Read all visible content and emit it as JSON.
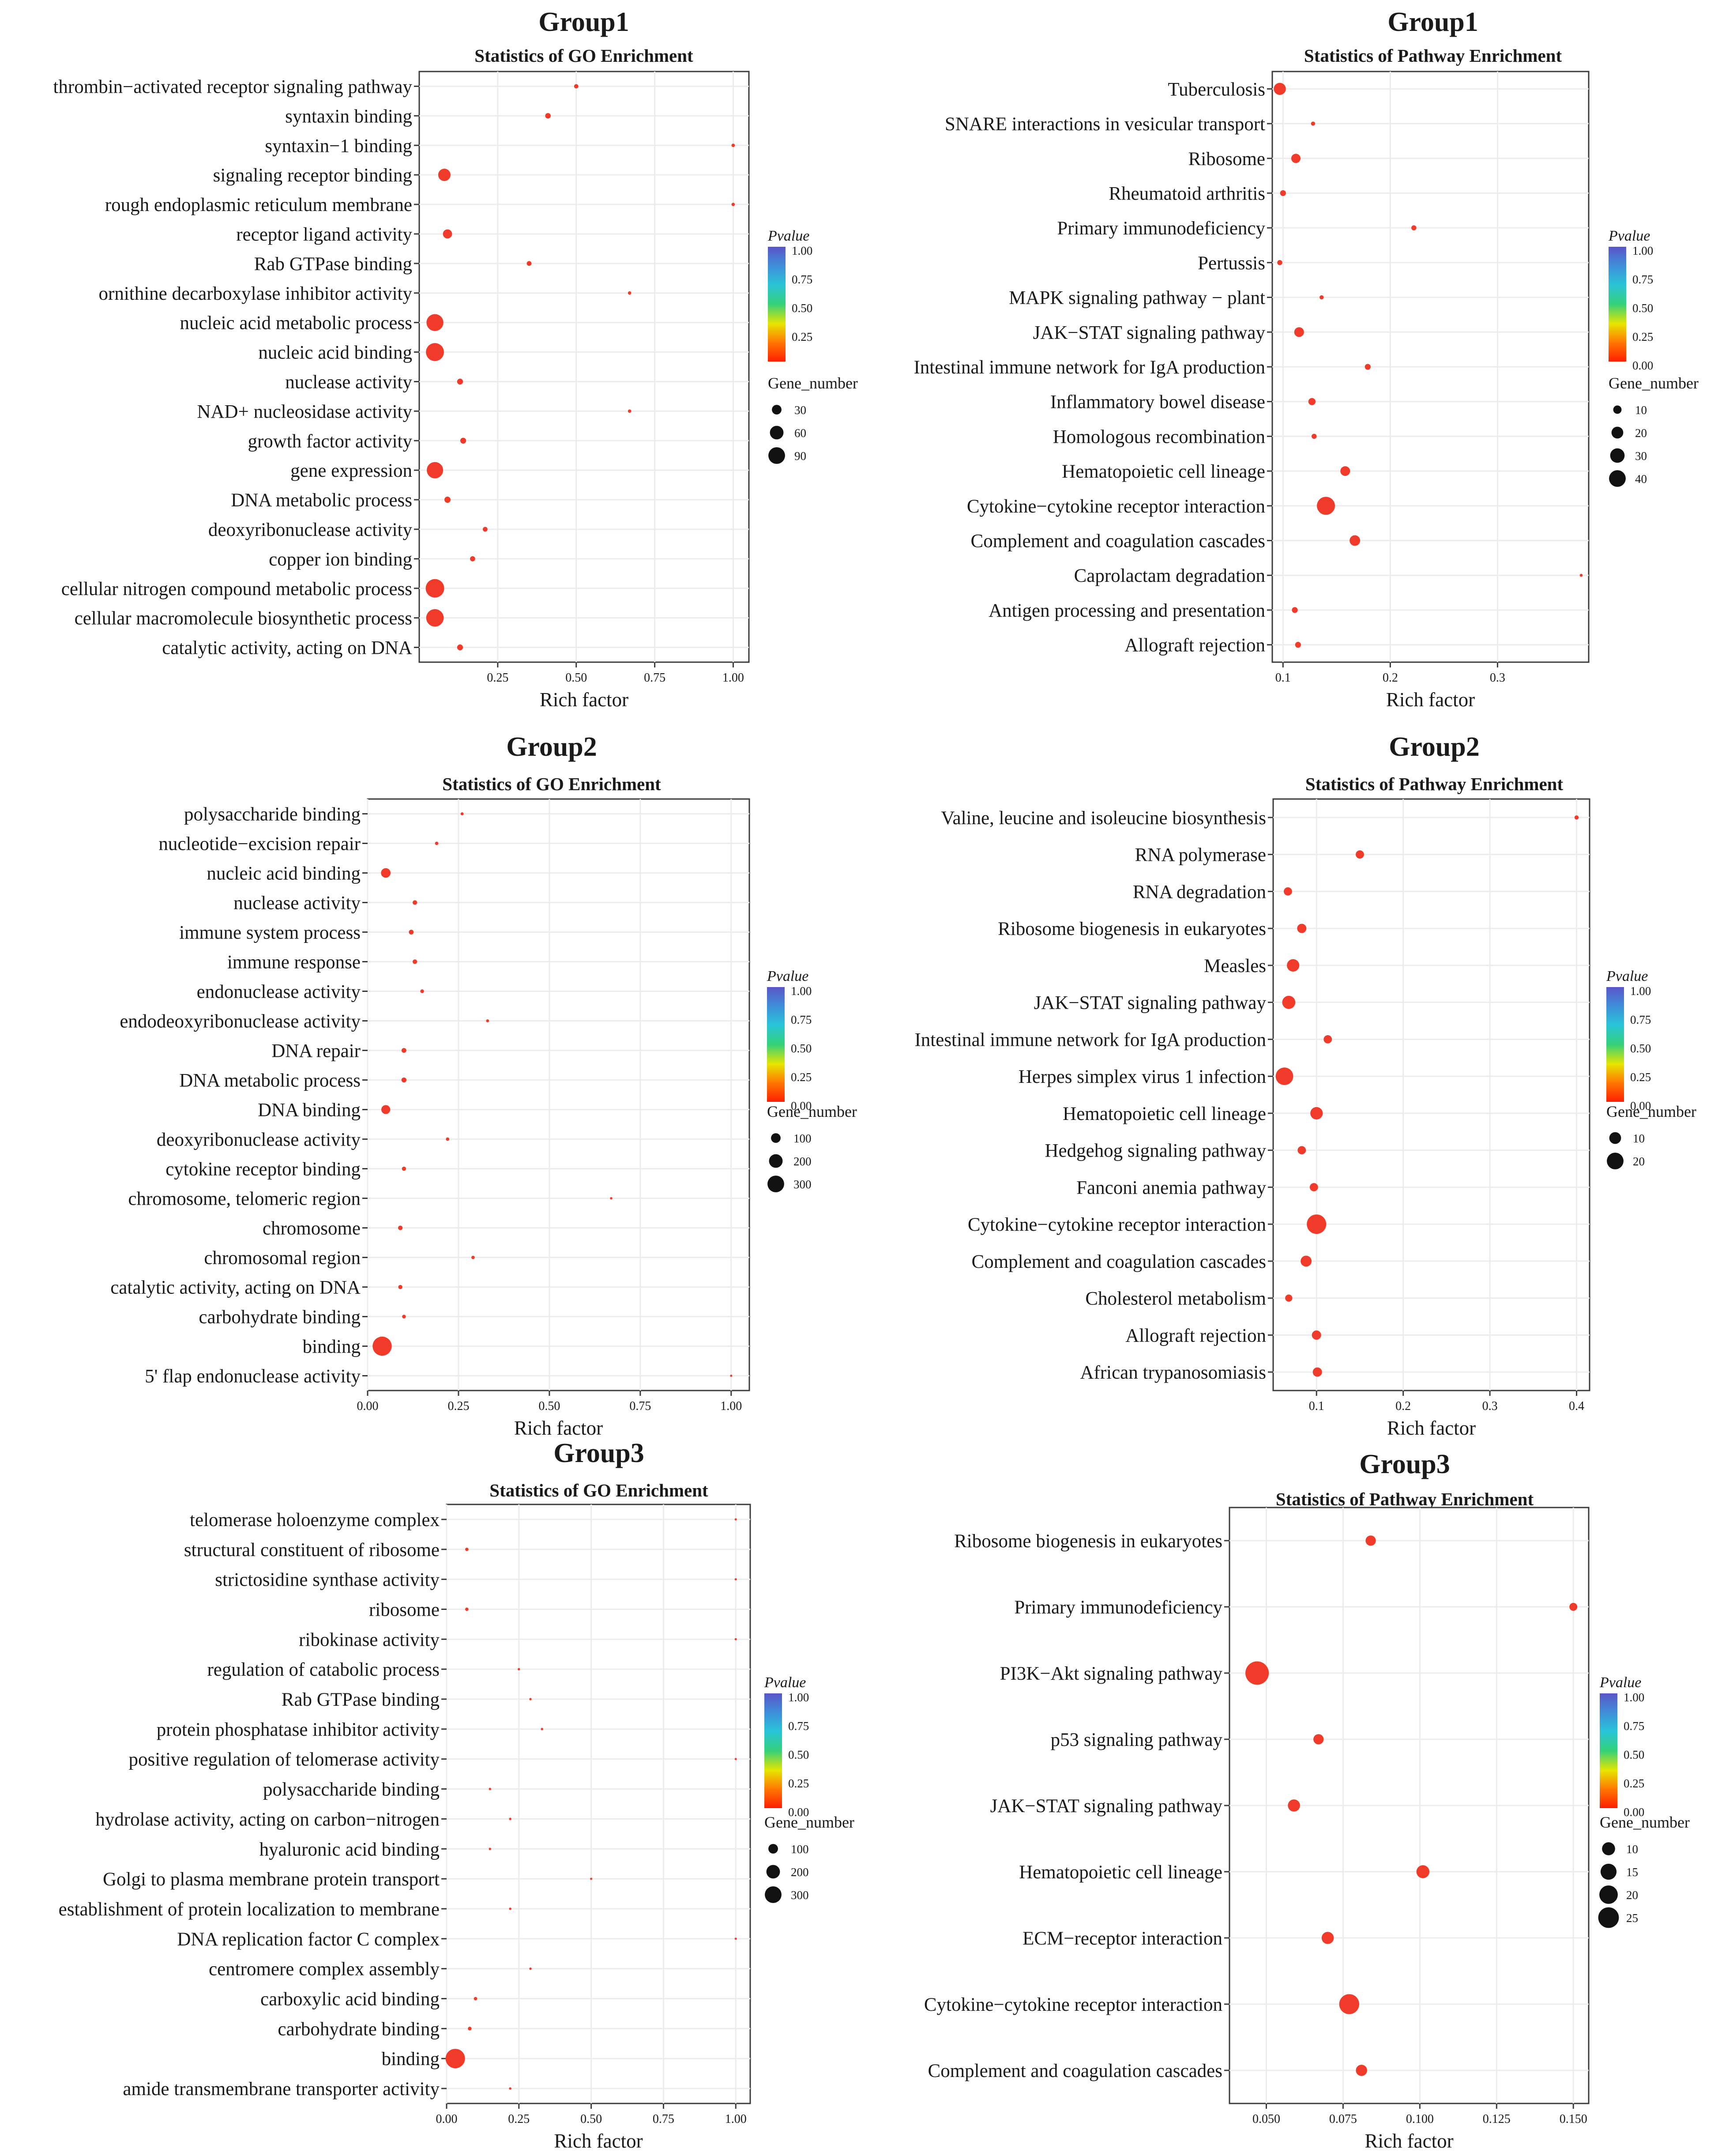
{
  "chart_data": [
    {
      "type": "scatter",
      "group": "Group1",
      "title": "Statistics of GO Enrichment",
      "xlabel": "Rich factor",
      "xlim": [
        0.0,
        1.05
      ],
      "xticks": [
        0.25,
        0.5,
        0.75,
        1.0
      ],
      "xtick_labels": [
        "0.25",
        "0.50",
        "0.75",
        "1.00"
      ],
      "categories": [
        "thrombin−activated receptor signaling pathway",
        "syntaxin binding",
        "syntaxin−1 binding",
        "signaling receptor binding",
        "rough endoplasmic reticulum membrane",
        "receptor ligand activity",
        "Rab GTPase binding",
        "ornithine decarboxylase inhibitor activity",
        "nucleic acid metabolic process",
        "nucleic acid binding",
        "nuclease activity",
        "NAD+ nucleosidase activity",
        "growth factor activity",
        "gene expression",
        "DNA metabolic process",
        "deoxyribonuclease activity",
        "copper ion binding",
        "cellular nitrogen compound metabolic process",
        "cellular macromolecule biosynthetic process",
        "catalytic activity, acting on DNA"
      ],
      "x": [
        0.5,
        0.41,
        1.0,
        0.08,
        1.0,
        0.09,
        0.35,
        0.67,
        0.05,
        0.05,
        0.13,
        0.67,
        0.14,
        0.05,
        0.09,
        0.21,
        0.17,
        0.05,
        0.05,
        0.13
      ],
      "gene_number": [
        5,
        8,
        3,
        40,
        3,
        22,
        6,
        3,
        75,
        85,
        9,
        3,
        9,
        70,
        10,
        6,
        7,
        90,
        80,
        9
      ],
      "pvalue": [
        0.03,
        0.03,
        0.03,
        0.01,
        0.03,
        0.01,
        0.03,
        0.03,
        0.0,
        0.0,
        0.02,
        0.03,
        0.02,
        0.0,
        0.02,
        0.03,
        0.03,
        0.0,
        0.0,
        0.02
      ],
      "size_legend": {
        "title": "Gene_number",
        "values": [
          30,
          60,
          90
        ],
        "labels": [
          "30",
          "60",
          "90"
        ]
      },
      "color_legend": {
        "title": "Pvalue",
        "labels": [
          "1.00",
          "0.75",
          "0.50",
          "0.25"
        ]
      }
    },
    {
      "type": "scatter",
      "group": "Group1",
      "title": "Statistics of Pathway Enrichment",
      "xlabel": "Rich factor",
      "xlim": [
        0.09,
        0.385
      ],
      "xticks": [
        0.1,
        0.2,
        0.3
      ],
      "xtick_labels": [
        "0.1",
        "0.2",
        "0.3"
      ],
      "categories": [
        "Tuberculosis",
        "SNARE interactions in vesicular transport",
        "Ribosome",
        "Rheumatoid arthritis",
        "Primary immunodeficiency",
        "Pertussis",
        "MAPK signaling pathway − plant",
        "JAK−STAT signaling pathway",
        "Intestinal immune network for IgA production",
        "Inflammatory bowel disease",
        "Homologous recombination",
        "Hematopoietic cell lineage",
        "Cytokine−cytokine receptor interaction",
        "Complement and coagulation cascades",
        "Caprolactam degradation",
        "Antigen processing and presentation",
        "Allograft rejection"
      ],
      "x": [
        0.097,
        0.128,
        0.112,
        0.1,
        0.222,
        0.097,
        0.136,
        0.115,
        0.179,
        0.127,
        0.129,
        0.158,
        0.14,
        0.167,
        0.378,
        0.111,
        0.114
      ],
      "gene_number": [
        17,
        2,
        10,
        4,
        3,
        3,
        2,
        11,
        4,
        6,
        3,
        11,
        38,
        13,
        1,
        4,
        4
      ],
      "pvalue": [
        0.02,
        0.05,
        0.03,
        0.05,
        0.05,
        0.06,
        0.05,
        0.02,
        0.03,
        0.04,
        0.05,
        0.02,
        0.0,
        0.01,
        0.06,
        0.05,
        0.05
      ],
      "size_legend": {
        "title": "Gene_number",
        "values": [
          10,
          20,
          30,
          40
        ],
        "labels": [
          "10",
          "20",
          "30",
          "40"
        ]
      },
      "color_legend": {
        "title": "Pvalue",
        "labels": [
          "1.00",
          "0.75",
          "0.50",
          "0.25",
          "0.00"
        ]
      }
    },
    {
      "type": "scatter",
      "group": "Group2",
      "title": "Statistics of GO Enrichment",
      "xlabel": "Rich factor",
      "xlim": [
        0.0,
        1.05
      ],
      "xticks": [
        0.0,
        0.25,
        0.5,
        0.75,
        1.0
      ],
      "xtick_labels": [
        "0.00",
        "0.25",
        "0.50",
        "0.75",
        "1.00"
      ],
      "categories": [
        "polysaccharide binding",
        "nucleotide−excision repair",
        "nucleic acid binding",
        "nuclease activity",
        "immune system process",
        "immune response",
        "endonuclease activity",
        "endodeoxyribonuclease activity",
        "DNA repair",
        "DNA metabolic process",
        "DNA binding",
        "deoxyribonuclease activity",
        "cytokine receptor binding",
        "chromosome, telomeric region",
        "chromosome",
        "chromosomal region",
        "catalytic activity, acting on DNA",
        "carbohydrate binding",
        "binding",
        "5' flap endonuclease activity"
      ],
      "x": [
        0.26,
        0.19,
        0.05,
        0.13,
        0.12,
        0.13,
        0.15,
        0.33,
        0.1,
        0.1,
        0.05,
        0.22,
        0.1,
        0.67,
        0.09,
        0.29,
        0.09,
        0.1,
        0.04,
        1.0
      ],
      "gene_number": [
        8,
        10,
        80,
        18,
        20,
        18,
        12,
        8,
        20,
        22,
        70,
        10,
        15,
        5,
        18,
        10,
        15,
        12,
        320,
        3
      ],
      "pvalue": [
        0.03,
        0.03,
        0.0,
        0.02,
        0.02,
        0.02,
        0.03,
        0.03,
        0.02,
        0.02,
        0.0,
        0.03,
        0.03,
        0.03,
        0.03,
        0.03,
        0.03,
        0.03,
        0.0,
        0.04
      ],
      "size_legend": {
        "title": "Gene_number",
        "values": [
          100,
          200,
          300
        ],
        "labels": [
          "100",
          "200",
          "300"
        ]
      },
      "color_legend": {
        "title": "Pvalue",
        "labels": [
          "1.00",
          "0.75",
          "0.50",
          "0.25",
          "0.00"
        ]
      }
    },
    {
      "type": "scatter",
      "group": "Group2",
      "title": "Statistics of Pathway Enrichment",
      "xlabel": "Rich factor",
      "xlim": [
        0.05,
        0.415
      ],
      "xticks": [
        0.1,
        0.2,
        0.3,
        0.4
      ],
      "xtick_labels": [
        "0.1",
        "0.2",
        "0.3",
        "0.4"
      ],
      "categories": [
        "Valine, leucine and isoleucine biosynthesis",
        "RNA polymerase",
        "RNA degradation",
        "Ribosome biogenesis in eukaryotes",
        "Measles",
        "JAK−STAT signaling pathway",
        "Intestinal immune network for IgA production",
        "Herpes simplex virus 1 infection",
        "Hematopoietic cell lineage",
        "Hedgehog signaling pathway",
        "Fanconi anemia pathway",
        "Cytokine−cytokine receptor interaction",
        "Complement and coagulation cascades",
        "Cholesterol metabolism",
        "Allograft rejection",
        "African trypanosomiasis"
      ],
      "x": [
        0.4,
        0.15,
        0.067,
        0.083,
        0.073,
        0.068,
        0.113,
        0.063,
        0.1,
        0.083,
        0.097,
        0.1,
        0.088,
        0.068,
        0.1,
        0.101
      ],
      "gene_number": [
        1,
        4,
        4,
        5,
        9,
        10,
        4,
        18,
        9,
        4,
        4,
        22,
        7,
        3,
        5,
        5
      ],
      "pvalue": [
        0.05,
        0.04,
        0.03,
        0.03,
        0.02,
        0.02,
        0.04,
        0.0,
        0.02,
        0.03,
        0.03,
        0.0,
        0.03,
        0.04,
        0.03,
        0.03
      ],
      "size_legend": {
        "title": "Gene_number",
        "values": [
          10,
          20
        ],
        "labels": [
          "10",
          "20"
        ]
      },
      "color_legend": {
        "title": "Pvalue",
        "labels": [
          "1.00",
          "0.75",
          "0.50",
          "0.25",
          "0.00"
        ]
      }
    },
    {
      "type": "scatter",
      "group": "Group3",
      "title": "Statistics of GO Enrichment",
      "xlabel": "Rich factor",
      "xlim": [
        0.0,
        1.05
      ],
      "xticks": [
        0.0,
        0.25,
        0.5,
        0.75,
        1.0
      ],
      "xtick_labels": [
        "0.00",
        "0.25",
        "0.50",
        "0.75",
        "1.00"
      ],
      "categories": [
        "telomerase holoenzyme complex",
        "structural constituent of ribosome",
        "strictosidine synthase activity",
        "ribosome",
        "ribokinase activity",
        "regulation of catabolic process",
        "Rab GTPase binding",
        "protein phosphatase inhibitor activity",
        "positive regulation of telomerase activity",
        "polysaccharide binding",
        "hydrolase activity, acting on carbon−nitrogen",
        "hyaluronic acid binding",
        "Golgi to plasma membrane protein transport",
        "establishment of protein localization to membrane",
        "DNA replication factor C complex",
        "centromere complex assembly",
        "carboxylic acid binding",
        "carbohydrate binding",
        "binding",
        "amide transmembrane transporter activity"
      ],
      "x": [
        1.0,
        0.07,
        1.0,
        0.07,
        1.0,
        0.25,
        0.29,
        0.33,
        1.0,
        0.15,
        0.22,
        0.15,
        0.5,
        0.22,
        1.0,
        0.29,
        0.1,
        0.08,
        0.03,
        0.22
      ],
      "gene_number": [
        3,
        10,
        3,
        10,
        3,
        5,
        5,
        5,
        3,
        5,
        5,
        5,
        3,
        5,
        3,
        5,
        10,
        12,
        330,
        5
      ],
      "pvalue": [
        0.03,
        0.03,
        0.03,
        0.03,
        0.03,
        0.04,
        0.04,
        0.04,
        0.03,
        0.04,
        0.04,
        0.04,
        0.04,
        0.04,
        0.03,
        0.04,
        0.03,
        0.03,
        0.0,
        0.04
      ],
      "size_legend": {
        "title": "Gene_number",
        "values": [
          100,
          200,
          300
        ],
        "labels": [
          "100",
          "200",
          "300"
        ]
      },
      "color_legend": {
        "title": "Pvalue",
        "labels": [
          "1.00",
          "0.75",
          "0.50",
          "0.25",
          "0.00"
        ]
      }
    },
    {
      "type": "scatter",
      "group": "Group3",
      "title": "Statistics of Pathway Enrichment",
      "xlabel": "Rich factor",
      "xlim": [
        0.038,
        0.155
      ],
      "xticks": [
        0.05,
        0.075,
        0.1,
        0.125,
        0.15
      ],
      "xtick_labels": [
        "0.050",
        "0.075",
        "0.100",
        "0.125",
        "0.150"
      ],
      "categories": [
        "Ribosome biogenesis in eukaryotes",
        "Primary immunodeficiency",
        "PI3K−Akt signaling pathway",
        "p53 signaling pathway",
        "JAK−STAT signaling pathway",
        "Hematopoietic cell lineage",
        "ECM−receptor interaction",
        "Cytokine−cytokine receptor interaction",
        "Complement and coagulation cascades"
      ],
      "x": [
        0.084,
        0.15,
        0.047,
        0.067,
        0.059,
        0.101,
        0.07,
        0.077,
        0.081
      ],
      "gene_number": [
        5,
        3,
        26,
        5,
        7,
        8,
        7,
        19,
        6
      ],
      "pvalue": [
        0.02,
        0.03,
        0.0,
        0.02,
        0.02,
        0.01,
        0.02,
        0.0,
        0.02
      ],
      "size_legend": {
        "title": "Gene_number",
        "values": [
          10,
          15,
          20,
          25
        ],
        "labels": [
          "10",
          "15",
          "20",
          "25"
        ]
      },
      "color_legend": {
        "title": "Pvalue",
        "labels": [
          "1.00",
          "0.75",
          "0.50",
          "0.25",
          "0.00"
        ]
      }
    }
  ],
  "colors": {
    "dot": "#f03a2a",
    "grid": "#ececec",
    "axis": "#3a3a3a",
    "gradient": [
      "#ff1f00",
      "#ff7a00",
      "#e6e600",
      "#34d17a",
      "#29c4d8",
      "#3d8fd9",
      "#5a55c8"
    ]
  }
}
